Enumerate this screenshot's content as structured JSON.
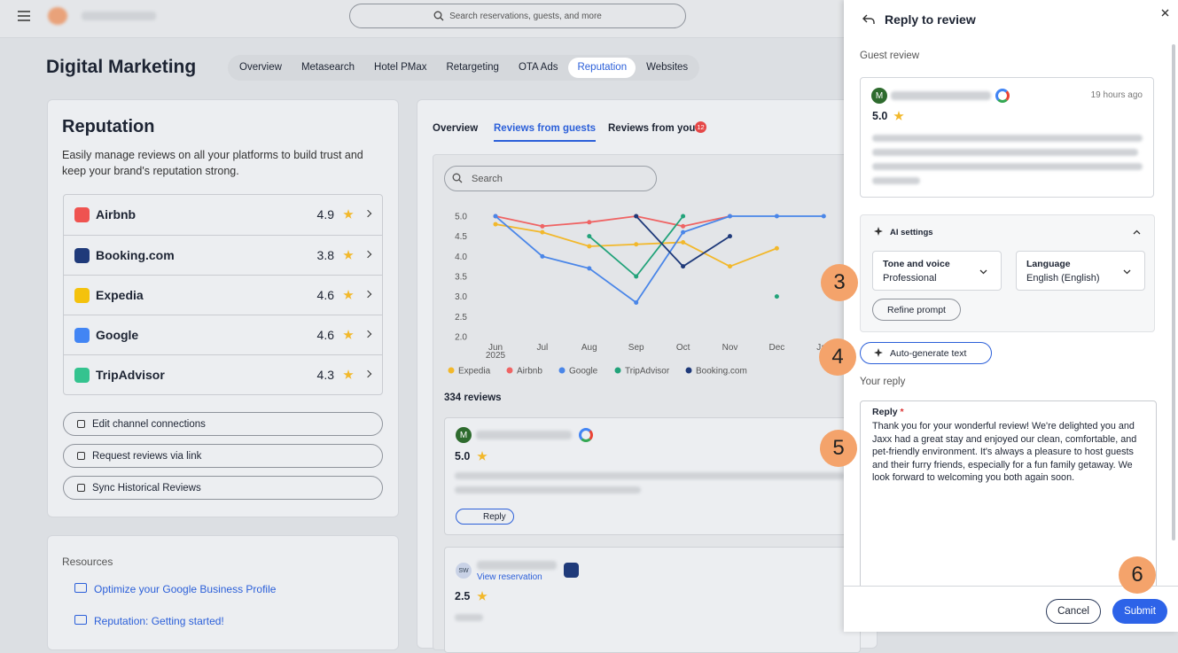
{
  "top_bar": {
    "search_placeholder": "Search reservations, guests, and more"
  },
  "page": {
    "title": "Digital Marketing",
    "tabs": [
      "Overview",
      "Metasearch",
      "Hotel PMax",
      "Retargeting",
      "OTA Ads",
      "Reputation",
      "Websites"
    ],
    "active_tab": 5
  },
  "reputation_card": {
    "title": "Reputation",
    "description": "Easily manage reviews on all your platforms to build trust and keep your brand's reputation strong.",
    "platforms": [
      {
        "name": "Airbnb",
        "rating": 4.9,
        "color": "#ef5350"
      },
      {
        "name": "Booking.com",
        "rating": 3.8,
        "color": "#1f3a7a"
      },
      {
        "name": "Expedia",
        "rating": 4.6,
        "color": "#f4c20d"
      },
      {
        "name": "Google",
        "rating": 4.6,
        "color": "#4285f4"
      },
      {
        "name": "TripAdvisor",
        "rating": 4.3,
        "color": "#34c38f"
      }
    ],
    "buttons": [
      "Edit channel connections",
      "Request reviews via link",
      "Sync Historical Reviews"
    ]
  },
  "resources": {
    "title": "Resources",
    "links": [
      "Optimize your Google Business Profile",
      "Reputation: Getting started!"
    ]
  },
  "reviews_panel": {
    "tabs": [
      "Overview",
      "Reviews from guests",
      "Reviews from you"
    ],
    "active_tab": 1,
    "badge": 12,
    "search_placeholder": "Search",
    "chart": {
      "type": "line",
      "categories": [
        "Jun",
        "Jul",
        "Aug",
        "Sep",
        "Oct",
        "Nov",
        "Dec",
        "Jan"
      ],
      "x_sublabel": "2025",
      "ylim": [
        2,
        5
      ],
      "yticks": [
        {
          "value": 2,
          "label": "2.0"
        },
        2.5,
        {
          "value": 3,
          "label": "3.0"
        },
        3.5,
        {
          "value": 4,
          "label": "4.0"
        },
        4.5,
        {
          "value": 5,
          "label": "5.0"
        }
      ],
      "series": [
        {
          "name": "Expedia",
          "color": "#f2b82b",
          "values": [
            4.8,
            4.6,
            4.25,
            4.3,
            4.35,
            3.75,
            4.2,
            null
          ]
        },
        {
          "name": "Airbnb",
          "color": "#ef6464",
          "values": [
            5.0,
            4.75,
            4.85,
            5.0,
            4.75,
            5.0,
            null,
            null
          ]
        },
        {
          "name": "Google",
          "color": "#4a86e8",
          "values": [
            5.0,
            4.0,
            3.7,
            2.85,
            4.6,
            5.0,
            5.0,
            5.0
          ]
        },
        {
          "name": "TripAdvisor",
          "color": "#22a37a",
          "values": [
            null,
            null,
            4.5,
            3.5,
            5.0,
            null,
            3.0,
            null
          ]
        },
        {
          "name": "Booking.com",
          "color": "#1f3a7a",
          "values": [
            null,
            null,
            null,
            5.0,
            3.75,
            4.5,
            null,
            null
          ]
        }
      ]
    },
    "review_count": "334 reviews",
    "reviews": [
      {
        "avatar": "M",
        "rating": "5.0",
        "button": "Reply"
      },
      {
        "avatar": "SW",
        "link": "View reservation",
        "rating": "2.5"
      }
    ]
  },
  "reply_drawer": {
    "title": "Reply to review",
    "guest_review_label": "Guest review",
    "review": {
      "avatar": "M",
      "time": "19 hours ago",
      "rating": "5.0"
    },
    "ai_settings": {
      "title": "AI settings",
      "tone_label": "Tone and voice",
      "tone_value": "Professional",
      "language_label": "Language",
      "language_value": "English (English)",
      "refine_button": "Refine prompt"
    },
    "auto_generate_button": "Auto-generate text",
    "your_reply_label": "Your reply",
    "reply_field_label": "Reply",
    "required_mark": "*",
    "reply_text": "Thank you for your wonderful review! We're delighted you and Jaxx had a great stay and enjoyed our clean, comfortable, and pet-friendly environment. It's always a pleasure to host guests and their furry friends, especially for a fun family getaway. We look forward to welcoming you both again soon.",
    "cancel_button": "Cancel",
    "submit_button": "Submit"
  },
  "step_markers": [
    "3",
    "4",
    "5",
    "6"
  ]
}
